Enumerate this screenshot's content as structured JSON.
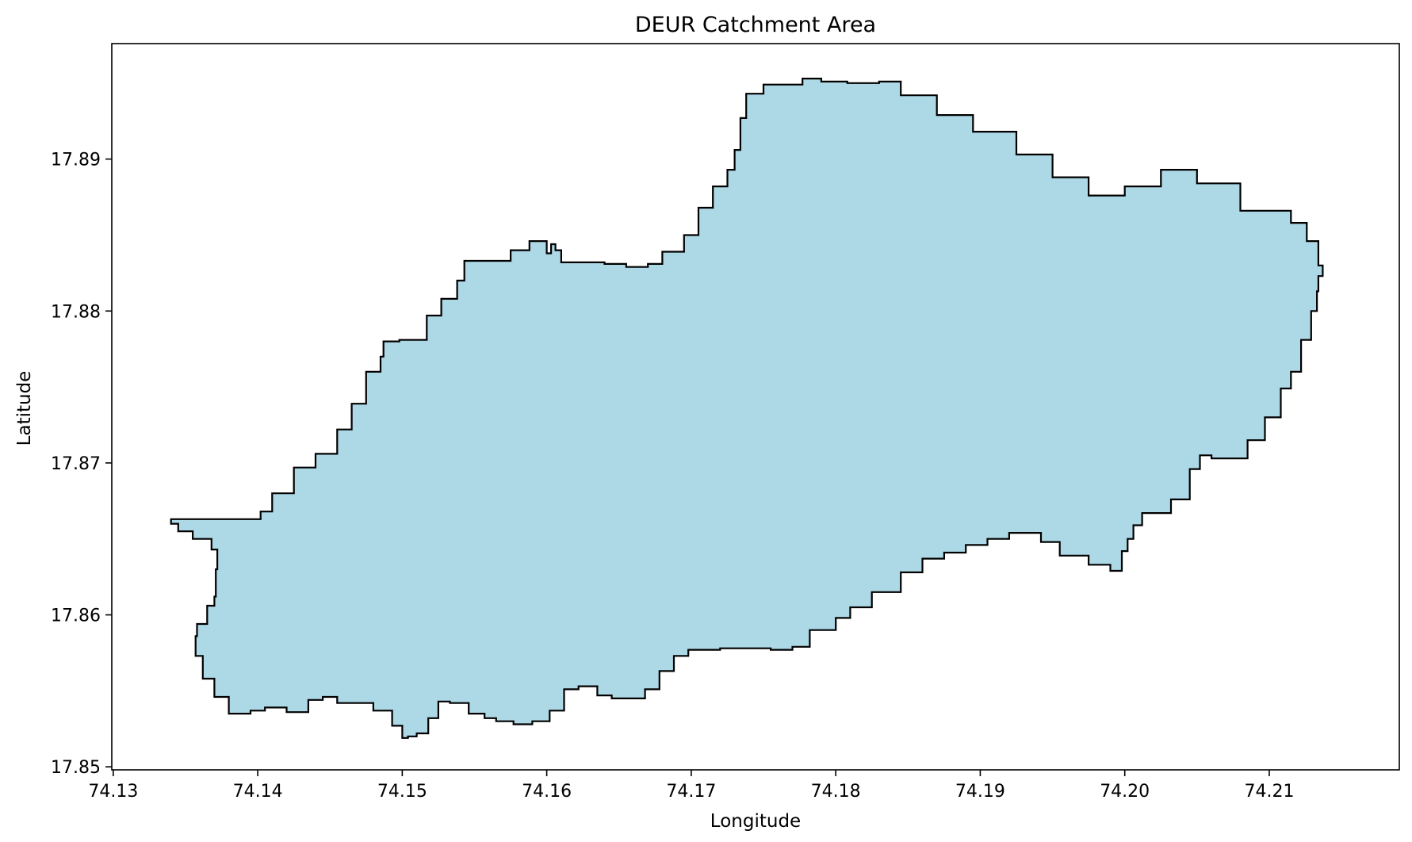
{
  "chart_data": {
    "type": "area",
    "title": "DEUR Catchment Area",
    "xlabel": "Longitude",
    "ylabel": "Latitude",
    "xlim": [
      74.1299,
      74.219
    ],
    "ylim": [
      17.8498,
      17.8976
    ],
    "xticks": [
      74.13,
      74.14,
      74.15,
      74.16,
      74.17,
      74.18,
      74.19,
      74.2,
      74.21
    ],
    "xtick_labels": [
      "74.13",
      "74.14",
      "74.15",
      "74.16",
      "74.17",
      "74.18",
      "74.19",
      "74.20",
      "74.21"
    ],
    "yticks": [
      17.85,
      17.86,
      17.87,
      17.88,
      17.89
    ],
    "ytick_labels": [
      "17.85",
      "17.86",
      "17.87",
      "17.88",
      "17.89"
    ],
    "grid": false,
    "legend": "none",
    "fill_color": "#add8e6",
    "edge_color": "#000000",
    "boundary": [
      [
        74.134,
        17.8663
      ],
      [
        74.1398,
        17.8663
      ],
      [
        74.1402,
        17.8668
      ],
      [
        74.141,
        17.868
      ],
      [
        74.1425,
        17.8697
      ],
      [
        74.144,
        17.8706
      ],
      [
        74.1455,
        17.8722
      ],
      [
        74.1465,
        17.8739
      ],
      [
        74.1475,
        17.876
      ],
      [
        74.1485,
        17.877
      ],
      [
        74.1487,
        17.878
      ],
      [
        74.1498,
        17.8781
      ],
      [
        74.1503,
        17.8781
      ],
      [
        74.1517,
        17.8797
      ],
      [
        74.1527,
        17.8808
      ],
      [
        74.1538,
        17.882
      ],
      [
        74.1543,
        17.8833
      ],
      [
        74.1565,
        17.8833
      ],
      [
        74.1575,
        17.884
      ],
      [
        74.1588,
        17.8846
      ],
      [
        74.16,
        17.8838
      ],
      [
        74.1603,
        17.8844
      ],
      [
        74.1606,
        17.884
      ],
      [
        74.161,
        17.8832
      ],
      [
        74.164,
        17.8831
      ],
      [
        74.1655,
        17.8829
      ],
      [
        74.167,
        17.8831
      ],
      [
        74.168,
        17.8839
      ],
      [
        74.1695,
        17.885
      ],
      [
        74.1705,
        17.8868
      ],
      [
        74.1715,
        17.8882
      ],
      [
        74.1725,
        17.8893
      ],
      [
        74.173,
        17.8906
      ],
      [
        74.1734,
        17.8927
      ],
      [
        74.1738,
        17.8943
      ],
      [
        74.175,
        17.8949
      ],
      [
        74.1768,
        17.8949
      ],
      [
        74.1777,
        17.8953
      ],
      [
        74.179,
        17.8951
      ],
      [
        74.1808,
        17.895
      ],
      [
        74.183,
        17.8951
      ],
      [
        74.1845,
        17.8942
      ],
      [
        74.187,
        17.8929
      ],
      [
        74.1895,
        17.8918
      ],
      [
        74.1925,
        17.8903
      ],
      [
        74.195,
        17.8888
      ],
      [
        74.1975,
        17.8876
      ],
      [
        74.2,
        17.8882
      ],
      [
        74.2025,
        17.8893
      ],
      [
        74.205,
        17.8884
      ],
      [
        74.208,
        17.8866
      ],
      [
        74.21,
        17.8866
      ],
      [
        74.2115,
        17.8858
      ],
      [
        74.2126,
        17.8846
      ],
      [
        74.2134,
        17.883
      ],
      [
        74.2137,
        17.8823
      ],
      [
        74.2134,
        17.8813
      ],
      [
        74.2133,
        17.88
      ],
      [
        74.2129,
        17.8781
      ],
      [
        74.2122,
        17.876
      ],
      [
        74.2115,
        17.8749
      ],
      [
        74.2108,
        17.873
      ],
      [
        74.2097,
        17.8715
      ],
      [
        74.2085,
        17.8703
      ],
      [
        74.206,
        17.8705
      ],
      [
        74.2052,
        17.8696
      ],
      [
        74.2045,
        17.8676
      ],
      [
        74.2032,
        17.8667
      ],
      [
        74.2012,
        17.8659
      ],
      [
        74.2006,
        17.865
      ],
      [
        74.2002,
        17.8642
      ],
      [
        74.1998,
        17.8629
      ],
      [
        74.199,
        17.8633
      ],
      [
        74.1975,
        17.8639
      ],
      [
        74.1955,
        17.8648
      ],
      [
        74.1942,
        17.8654
      ],
      [
        74.192,
        17.865
      ],
      [
        74.1905,
        17.8646
      ],
      [
        74.189,
        17.8641
      ],
      [
        74.1875,
        17.8637
      ],
      [
        74.186,
        17.8628
      ],
      [
        74.1845,
        17.8615
      ],
      [
        74.1825,
        17.8605
      ],
      [
        74.181,
        17.8598
      ],
      [
        74.18,
        17.859
      ],
      [
        74.1782,
        17.8579
      ],
      [
        74.177,
        17.8577
      ],
      [
        74.1755,
        17.8578
      ],
      [
        74.1735,
        17.8578
      ],
      [
        74.172,
        17.8577
      ],
      [
        74.1705,
        17.8577
      ],
      [
        74.1698,
        17.8573
      ],
      [
        74.1688,
        17.8563
      ],
      [
        74.1678,
        17.8551
      ],
      [
        74.1668,
        17.8545
      ],
      [
        74.1655,
        17.8545
      ],
      [
        74.1645,
        17.8547
      ],
      [
        74.1635,
        17.8553
      ],
      [
        74.1622,
        17.8551
      ],
      [
        74.1612,
        17.8537
      ],
      [
        74.1602,
        17.853
      ],
      [
        74.159,
        17.8528
      ],
      [
        74.1577,
        17.853
      ],
      [
        74.1565,
        17.8532
      ],
      [
        74.1557,
        17.8535
      ],
      [
        74.1546,
        17.8542
      ],
      [
        74.1533,
        17.8543
      ],
      [
        74.1525,
        17.8532
      ],
      [
        74.1518,
        17.8522
      ],
      [
        74.151,
        17.852
      ],
      [
        74.1504,
        17.8519
      ],
      [
        74.15,
        17.8527
      ],
      [
        74.1493,
        17.8537
      ],
      [
        74.148,
        17.8542
      ],
      [
        74.1466,
        17.8542
      ],
      [
        74.1455,
        17.8546
      ],
      [
        74.1445,
        17.8544
      ],
      [
        74.1435,
        17.8536
      ],
      [
        74.142,
        17.8539
      ],
      [
        74.1405,
        17.8537
      ],
      [
        74.1395,
        17.8535
      ],
      [
        74.138,
        17.8546
      ],
      [
        74.137,
        17.8558
      ],
      [
        74.1362,
        17.8573
      ],
      [
        74.1357,
        17.8586
      ],
      [
        74.1358,
        17.8594
      ],
      [
        74.1365,
        17.8606
      ],
      [
        74.137,
        17.8612
      ],
      [
        74.1371,
        17.863
      ],
      [
        74.1372,
        17.8643
      ],
      [
        74.1368,
        17.865
      ],
      [
        74.1355,
        17.8655
      ],
      [
        74.1345,
        17.866
      ],
      [
        74.134,
        17.8663
      ]
    ]
  }
}
